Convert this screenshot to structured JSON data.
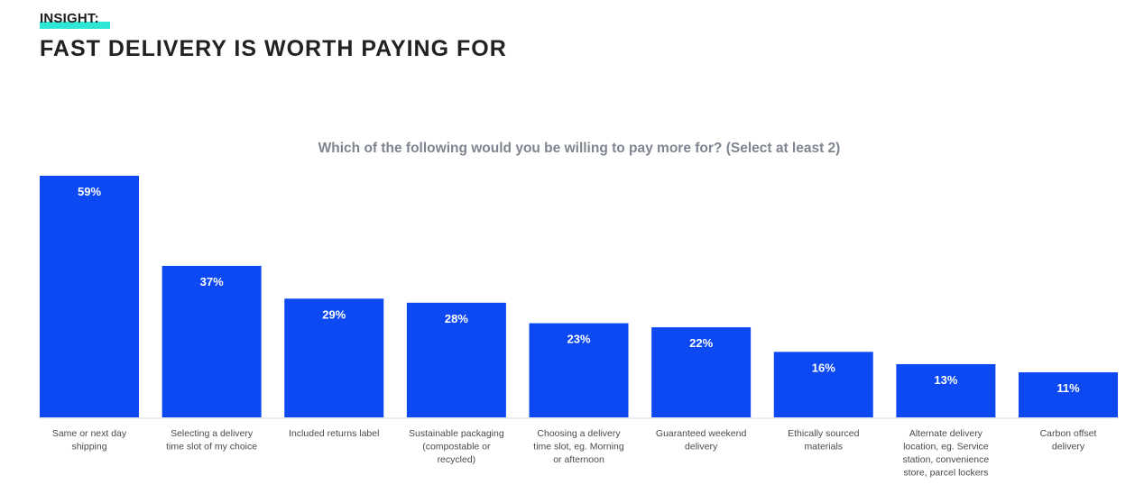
{
  "header": {
    "insight_label": "INSIGHT:",
    "title": "FAST DELIVERY IS WORTH PAYING FOR"
  },
  "colors": {
    "bar": "#0d49f2",
    "highlight": "#2ee6d6",
    "title": "#222222",
    "subtitle": "#7f8590",
    "axis_text": "#4a4a4a"
  },
  "chart_data": {
    "type": "bar",
    "title": "Which of the following would you be willing to pay more for? (Select at least 2)",
    "xlabel": "",
    "ylabel": "",
    "ylim": [
      0,
      60
    ],
    "grid": false,
    "categories": [
      [
        "Same or next day",
        "shipping"
      ],
      [
        "Selecting a delivery",
        "time slot of my choice"
      ],
      [
        "Included returns label"
      ],
      [
        "Sustainable packaging",
        "(compostable or",
        "recycled)"
      ],
      [
        "Choosing a delivery",
        "time slot, eg. Morning",
        "or afternoon"
      ],
      [
        "Guaranteed weekend",
        "delivery"
      ],
      [
        "Ethically sourced",
        "materials"
      ],
      [
        "Alternate delivery",
        "location, eg. Service",
        "station, convenience",
        "store, parcel lockers"
      ],
      [
        "Carbon offset",
        "delivery"
      ]
    ],
    "values": [
      59,
      37,
      29,
      28,
      23,
      22,
      16,
      13,
      11
    ],
    "data_labels": [
      "59%",
      "37%",
      "29%",
      "28%",
      "23%",
      "22%",
      "16%",
      "13%",
      "11%"
    ]
  }
}
